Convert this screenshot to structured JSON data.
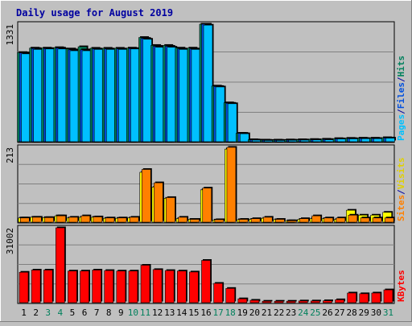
{
  "chart_data": {
    "type": "bar",
    "title": "Daily usage for August 2019",
    "categories": [
      "1",
      "2",
      "3",
      "4",
      "5",
      "6",
      "7",
      "8",
      "9",
      "10",
      "11",
      "12",
      "13",
      "14",
      "15",
      "16",
      "17",
      "18",
      "19",
      "20",
      "21",
      "22",
      "23",
      "24",
      "25",
      "26",
      "27",
      "28",
      "29",
      "30",
      "31"
    ],
    "weekend_days": [
      "3",
      "4",
      "10",
      "11",
      "17",
      "18",
      "24",
      "25",
      "31"
    ],
    "panels": [
      {
        "id": "hits",
        "ymax_label": "1331",
        "ylim": [
          0,
          1331
        ],
        "legend": [
          {
            "text": "Hits",
            "color": "#00805c"
          },
          {
            "text": "/",
            "color": "#0000a0"
          },
          {
            "text": "Files",
            "color": "#0050e0"
          },
          {
            "text": "/",
            "color": "#0000a0"
          },
          {
            "text": "Pages",
            "color": "#00c0ff"
          }
        ],
        "series": [
          {
            "name": "Hits",
            "color": "#00805c",
            "values": [
              1010,
              1060,
              1060,
              1065,
              1050,
              1075,
              1058,
              1058,
              1058,
              1060,
              1180,
              1090,
              1090,
              1060,
              1060,
              1331,
              630,
              440,
              95,
              22,
              18,
              18,
              20,
              22,
              25,
              28,
              35,
              38,
              40,
              40,
              45
            ]
          },
          {
            "name": "Files",
            "color": "#0050e0",
            "values": [
              1005,
              1055,
              1055,
              1060,
              1040,
              1040,
              1050,
              1050,
              1050,
              1055,
              1170,
              1080,
              1080,
              1050,
              1050,
              1331,
              625,
              435,
              95,
              20,
              16,
              16,
              18,
              20,
              22,
              25,
              32,
              35,
              36,
              36,
              42
            ]
          },
          {
            "name": "Pages",
            "color": "#00c0ff",
            "values": [
              995,
              1045,
              1050,
              1050,
              1030,
              1030,
              1045,
              1045,
              1045,
              1050,
              1160,
              1070,
              1070,
              1045,
              1045,
              1320,
              620,
              430,
              90,
              18,
              14,
              14,
              16,
              18,
              20,
              22,
              30,
              32,
              34,
              34,
              40
            ]
          }
        ]
      },
      {
        "id": "visits",
        "ymax_label": "213",
        "ylim": [
          0,
          213
        ],
        "legend": [
          {
            "text": "Visits",
            "color": "#e0d000"
          },
          {
            "text": "/",
            "color": "#0000a0"
          },
          {
            "text": "Sites",
            "color": "#ff8000"
          }
        ],
        "series": [
          {
            "name": "Visits",
            "color": "#ffff00",
            "values": [
              12,
              14,
              13,
              18,
              12,
              14,
              14,
              11,
              11,
              12,
              142,
              100,
              68,
              10,
              8,
              92,
              6,
              208,
              7,
              8,
              11,
              7,
              4,
              8,
              10,
              10,
              8,
              34,
              20,
              20,
              28
            ]
          },
          {
            "name": "Sites",
            "color": "#ff8000",
            "values": [
              12,
              14,
              13,
              18,
              14,
              18,
              15,
              12,
              12,
              14,
              150,
              112,
              70,
              14,
              8,
              97,
              7,
              213,
              8,
              10,
              14,
              8,
              4,
              10,
              18,
              12,
              12,
              20,
              12,
              12,
              12
            ]
          }
        ]
      },
      {
        "id": "kbytes",
        "ymax_label": "31002",
        "ylim": [
          0,
          31002
        ],
        "legend": [
          {
            "text": "KBytes",
            "color": "#ff0000"
          }
        ],
        "series": [
          {
            "name": "KBytes",
            "color": "#ff0000",
            "values": [
              12600,
              13500,
              13500,
              31002,
              13100,
              13100,
              13500,
              13300,
              13100,
              13100,
              15500,
              13700,
              13300,
              13100,
              12700,
              17500,
              8000,
              5900,
              1600,
              1000,
              600,
              600,
              600,
              700,
              700,
              800,
              1200,
              4000,
              3700,
              4000,
              5300
            ]
          }
        ]
      }
    ]
  }
}
